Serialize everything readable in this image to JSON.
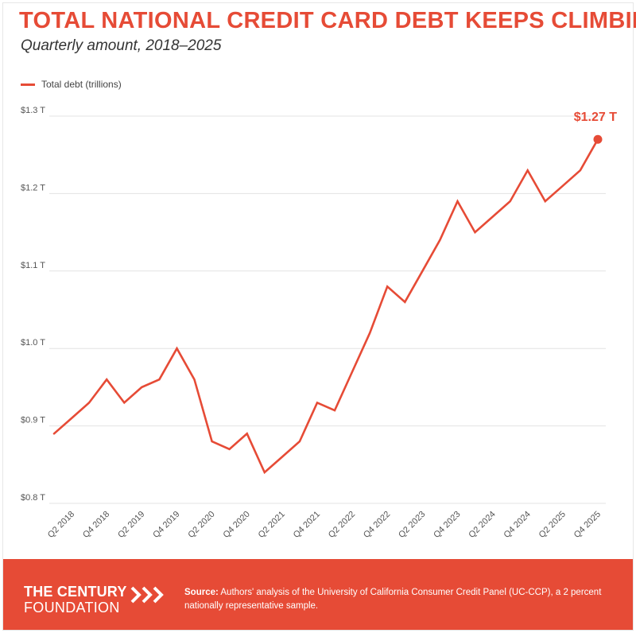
{
  "header": {
    "title": "TOTAL NATIONAL CREDIT CARD DEBT KEEPS CLIMBING",
    "subtitle": "Quarterly amount, 2018–2025"
  },
  "legend": {
    "label": "Total debt (trillions)"
  },
  "footer": {
    "logo_line1": "THE CENTURY",
    "logo_line2": "FOUNDATION",
    "source_label": "Source:",
    "source_text": "Authors' analysis of the University of California Consumer Credit Panel (UC-CCP), a 2 percent nationally representative sample."
  },
  "colors": {
    "accent": "#e64b36",
    "grid": "#e3e3e3",
    "axis_text": "#555555"
  },
  "chart_data": {
    "type": "line",
    "xlabel": "",
    "ylabel": "",
    "ylim": [
      0.8,
      1.3
    ],
    "y_ticks": [
      {
        "value": 0.8,
        "label": "$0.8 T"
      },
      {
        "value": 0.9,
        "label": "$0.9 T"
      },
      {
        "value": 1.0,
        "label": "$1.0 T"
      },
      {
        "value": 1.1,
        "label": "$1.1 T"
      },
      {
        "value": 1.2,
        "label": "$1.2 T"
      },
      {
        "value": 1.3,
        "label": "$1.3 T"
      }
    ],
    "grid": true,
    "legend_position": "top-left",
    "categories": [
      "Q1 2018",
      "Q2 2018",
      "Q3 2018",
      "Q4 2018",
      "Q1 2019",
      "Q2 2019",
      "Q3 2019",
      "Q4 2019",
      "Q1 2020",
      "Q2 2020",
      "Q3 2020",
      "Q4 2020",
      "Q1 2021",
      "Q2 2021",
      "Q3 2021",
      "Q4 2021",
      "Q1 2022",
      "Q2 2022",
      "Q3 2022",
      "Q4 2022",
      "Q1 2023",
      "Q2 2023",
      "Q3 2023",
      "Q4 2023",
      "Q1 2024",
      "Q2 2024",
      "Q3 2024",
      "Q4 2024",
      "Q1 2025",
      "Q2 2025",
      "Q3 2025",
      "Q4 2025"
    ],
    "tick_labels": [
      "Q2 2018",
      "Q4 2018",
      "Q2 2019",
      "Q4 2019",
      "Q2 2020",
      "Q4 2020",
      "Q2 2021",
      "Q4 2021",
      "Q2 2022",
      "Q4 2022",
      "Q2 2023",
      "Q4 2023",
      "Q2 2024",
      "Q4 2024",
      "Q2 2025",
      "Q4 2025"
    ],
    "series": [
      {
        "name": "Total debt (trillions)",
        "values": [
          0.89,
          0.91,
          0.93,
          0.96,
          0.93,
          0.95,
          0.96,
          1.0,
          0.96,
          0.88,
          0.87,
          0.89,
          0.84,
          0.86,
          0.88,
          0.93,
          0.92,
          0.97,
          1.02,
          1.08,
          1.06,
          1.1,
          1.14,
          1.19,
          1.15,
          1.17,
          1.19,
          1.23,
          1.19,
          1.21,
          1.23,
          1.27
        ]
      }
    ],
    "end_label": "$1.27 T"
  }
}
